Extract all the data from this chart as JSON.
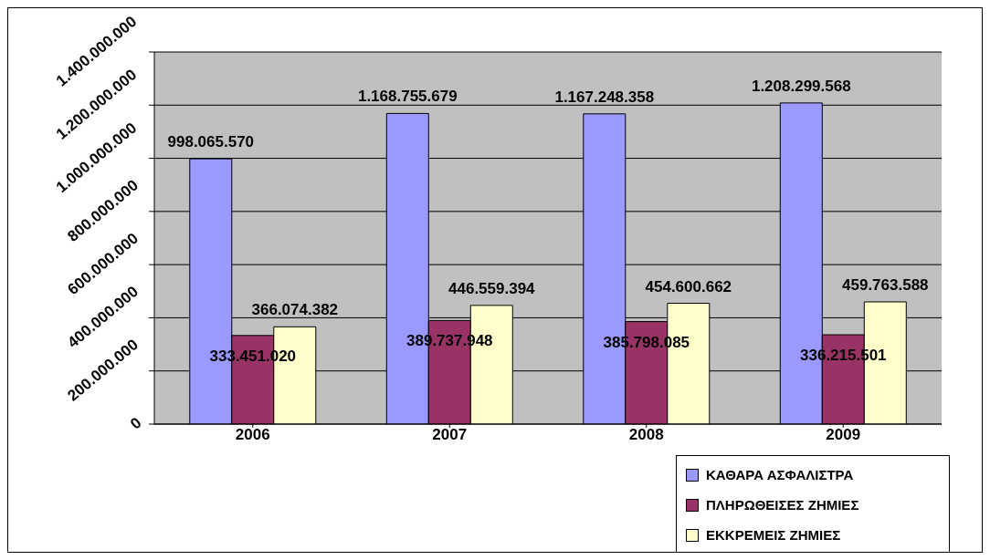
{
  "chart_data": {
    "type": "bar",
    "categories": [
      "2006",
      "2007",
      "2008",
      "2009"
    ],
    "series": [
      {
        "name": "ΚΑΘΑΡΑ ΑΣΦΑΛΙΣΤΡΑ",
        "color": "#9999ff",
        "values": [
          998065570,
          1168755679,
          1167248358,
          1208299568
        ],
        "value_labels": [
          "998.065.570",
          "1.168.755.679",
          "1.167.248.358",
          "1.208.299.568"
        ]
      },
      {
        "name": "ΠΛΗΡΩΘΕΙΣΕΣ ΖΗΜΙΕΣ",
        "color": "#993366",
        "values": [
          333451020,
          389737948,
          385798085,
          336215501
        ],
        "value_labels": [
          "333.451.020",
          "389.737.948",
          "385.798.085",
          "336.215.501"
        ]
      },
      {
        "name": "ΕΚΚΡΕΜΕΙΣ ΖΗΜΙΕΣ",
        "color": "#ffffcc",
        "values": [
          366074382,
          446559394,
          454600662,
          459763588
        ],
        "value_labels": [
          "366.074.382",
          "446.559.394",
          "454.600.662",
          "459.763.588"
        ]
      }
    ],
    "ylim": [
      0,
      1400000000
    ],
    "yticks": [
      0,
      {
        "value": 200000000,
        "label": "200.000.000"
      },
      {
        "value": 400000000,
        "label": "400.000.000"
      },
      {
        "value": 600000000,
        "label": "600.000.000"
      },
      {
        "value": 800000000,
        "label": "800.000.000"
      },
      {
        "value": 1000000000,
        "label": "1.000.000.000"
      },
      {
        "value": 1200000000,
        "label": "1.200.000.000"
      },
      {
        "value": 1400000000,
        "label": "1.400.000.000"
      }
    ],
    "grid": "y",
    "legend": "bottom right"
  }
}
